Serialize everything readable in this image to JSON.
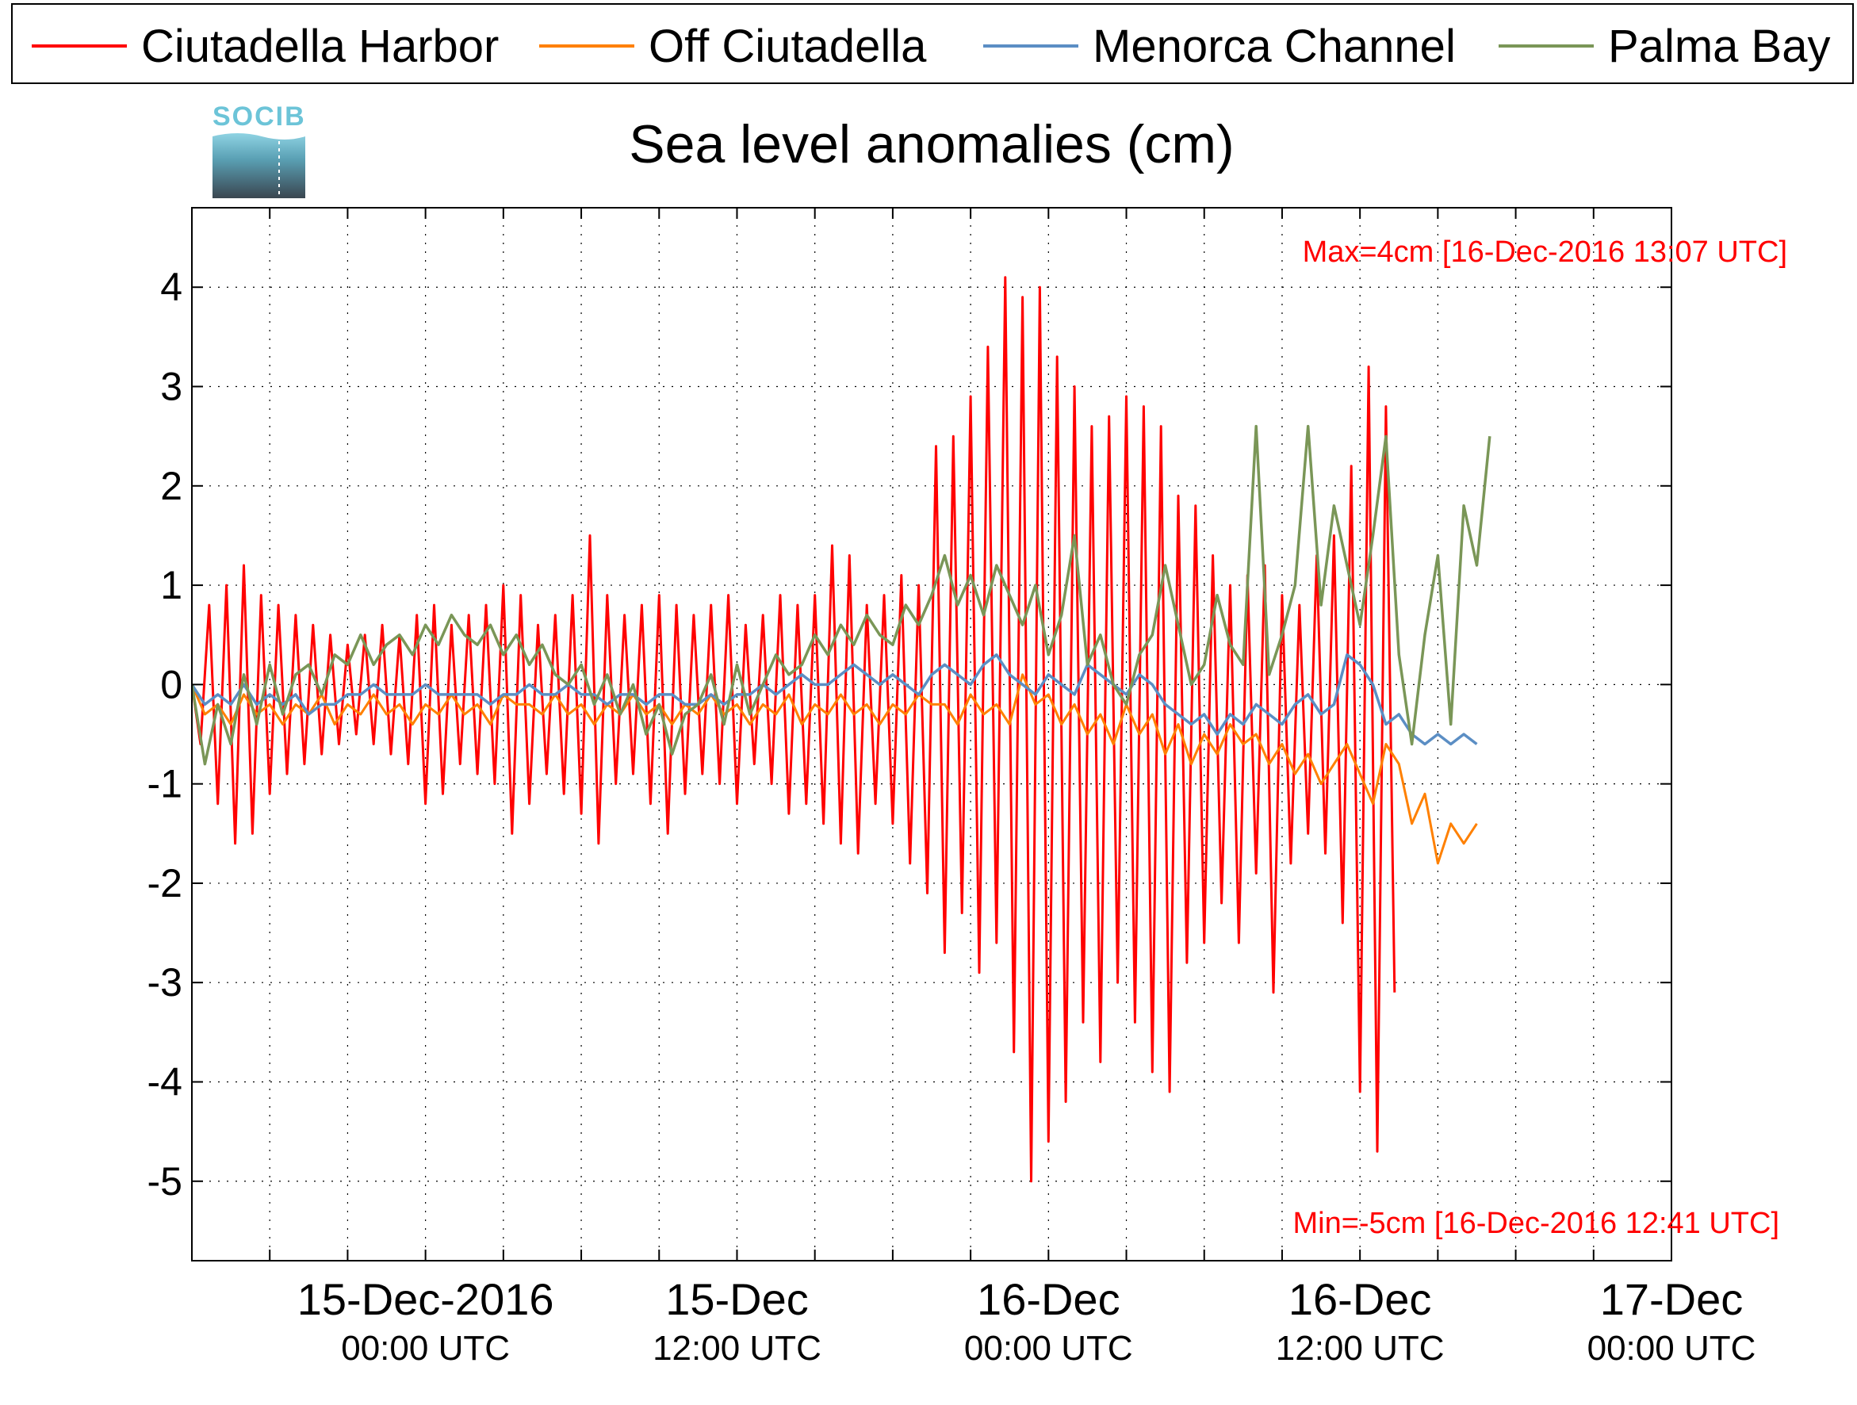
{
  "chart_data": {
    "type": "line",
    "title": "Sea level anomalies (cm)",
    "xlabel": "",
    "ylabel": "",
    "ylim": [
      -5.8,
      4.8
    ],
    "xlim": [
      "2016-12-14T15:00:00Z",
      "2016-12-17T00:00:00Z"
    ],
    "grid": true,
    "legend_position": "top",
    "yticks": [
      4,
      3,
      2,
      1,
      0,
      -1,
      -2,
      -3,
      -4,
      -5
    ],
    "ytick_labels": [
      "4",
      "3",
      "2",
      "1",
      "0",
      "-1",
      "-2",
      "-3",
      "-4",
      "-5"
    ],
    "xticks_major": [
      {
        "x": "2016-12-15T00:00:00Z",
        "line1": "15-Dec-2016",
        "line2": "00:00 UTC"
      },
      {
        "x": "2016-12-15T12:00:00Z",
        "line1": "15-Dec",
        "line2": "12:00 UTC"
      },
      {
        "x": "2016-12-16T00:00:00Z",
        "line1": "16-Dec",
        "line2": "00:00 UTC"
      },
      {
        "x": "2016-12-16T12:00:00Z",
        "line1": "16-Dec",
        "line2": "12:00 UTC"
      },
      {
        "x": "2016-12-17T00:00:00Z",
        "line1": "17-Dec",
        "line2": "00:00 UTC"
      }
    ],
    "annotations": {
      "max": "Max=4cm [16-Dec-2016 13:07 UTC]",
      "min": "Min=-5cm [16-Dec-2016 12:41 UTC]"
    },
    "series": [
      {
        "name": "Ciutadella Harbor",
        "color": "#ff0000",
        "x_start": "2016-12-14T15:00:00Z",
        "step_minutes": 20,
        "values": [
          0.0,
          -0.6,
          0.8,
          -1.2,
          1.0,
          -1.6,
          1.2,
          -1.5,
          0.9,
          -1.1,
          0.8,
          -0.9,
          0.7,
          -0.8,
          0.6,
          -0.7,
          0.5,
          -0.6,
          0.4,
          -0.5,
          0.5,
          -0.6,
          0.6,
          -0.7,
          0.5,
          -0.8,
          0.7,
          -1.2,
          0.8,
          -1.1,
          0.6,
          -0.8,
          0.7,
          -0.9,
          0.8,
          -1.0,
          1.0,
          -1.5,
          0.9,
          -1.2,
          0.6,
          -0.9,
          0.7,
          -1.1,
          0.9,
          -1.3,
          1.5,
          -1.6,
          0.9,
          -1.0,
          0.7,
          -0.9,
          0.8,
          -1.2,
          0.9,
          -1.5,
          0.8,
          -1.1,
          0.7,
          -0.9,
          0.8,
          -1.0,
          0.9,
          -1.2,
          0.6,
          -0.8,
          0.7,
          -1.0,
          0.9,
          -1.3,
          0.8,
          -1.2,
          0.9,
          -1.4,
          1.4,
          -1.6,
          1.3,
          -1.7,
          0.8,
          -1.2,
          0.9,
          -1.4,
          1.1,
          -1.8,
          1.0,
          -2.1,
          2.4,
          -2.7,
          2.5,
          -2.3,
          2.9,
          -2.9,
          3.4,
          -2.6,
          4.1,
          -3.7,
          3.9,
          -5.0,
          4.0,
          -4.6,
          3.3,
          -4.2,
          3.0,
          -3.4,
          2.6,
          -3.8,
          2.7,
          -3.0,
          2.9,
          -3.4,
          2.8,
          -3.9,
          2.6,
          -4.1,
          1.9,
          -2.8,
          1.8,
          -2.6,
          1.3,
          -2.2,
          1.0,
          -2.6,
          1.1,
          -1.9,
          1.2,
          -3.1,
          0.9,
          -1.8,
          0.8,
          -1.5,
          1.3,
          -1.7,
          1.5,
          -2.4,
          2.2,
          -4.1,
          3.2,
          -4.7,
          2.8,
          -3.1
        ]
      },
      {
        "name": "Off Ciutadella",
        "color": "#ff8000",
        "x_start": "2016-12-14T15:00:00Z",
        "step_minutes": 30,
        "values": [
          0.0,
          -0.3,
          -0.2,
          -0.4,
          -0.1,
          -0.3,
          -0.2,
          -0.4,
          -0.2,
          -0.3,
          -0.1,
          -0.4,
          -0.2,
          -0.3,
          -0.1,
          -0.3,
          -0.2,
          -0.4,
          -0.2,
          -0.3,
          -0.1,
          -0.3,
          -0.2,
          -0.4,
          -0.1,
          -0.2,
          -0.2,
          -0.3,
          -0.1,
          -0.3,
          -0.2,
          -0.4,
          -0.2,
          -0.3,
          -0.1,
          -0.3,
          -0.2,
          -0.4,
          -0.2,
          -0.3,
          -0.1,
          -0.3,
          -0.2,
          -0.4,
          -0.2,
          -0.3,
          -0.1,
          -0.4,
          -0.2,
          -0.3,
          -0.1,
          -0.3,
          -0.2,
          -0.4,
          -0.2,
          -0.3,
          -0.1,
          -0.2,
          -0.2,
          -0.4,
          -0.1,
          -0.3,
          -0.2,
          -0.4,
          0.1,
          -0.2,
          -0.1,
          -0.4,
          -0.2,
          -0.5,
          -0.3,
          -0.6,
          -0.2,
          -0.5,
          -0.3,
          -0.7,
          -0.4,
          -0.8,
          -0.5,
          -0.7,
          -0.4,
          -0.6,
          -0.5,
          -0.8,
          -0.6,
          -0.9,
          -0.7,
          -1.0,
          -0.8,
          -0.6,
          -0.9,
          -1.2,
          -0.6,
          -0.8,
          -1.4,
          -1.1,
          -1.8,
          -1.4,
          -1.6,
          -1.4
        ]
      },
      {
        "name": "Menorca Channel",
        "color": "#5b8ec4",
        "x_start": "2016-12-14T15:00:00Z",
        "step_minutes": 30,
        "values": [
          0.0,
          -0.2,
          -0.1,
          -0.2,
          0.0,
          -0.2,
          -0.1,
          -0.2,
          -0.1,
          -0.3,
          -0.2,
          -0.2,
          -0.1,
          -0.1,
          0.0,
          -0.1,
          -0.1,
          -0.1,
          0.0,
          -0.1,
          -0.1,
          -0.1,
          -0.1,
          -0.2,
          -0.1,
          -0.1,
          0.0,
          -0.1,
          -0.1,
          0.0,
          -0.1,
          -0.1,
          -0.2,
          -0.1,
          -0.1,
          -0.2,
          -0.1,
          -0.1,
          -0.2,
          -0.2,
          -0.1,
          -0.2,
          -0.1,
          -0.1,
          0.0,
          -0.1,
          0.0,
          0.1,
          0.0,
          0.0,
          0.1,
          0.2,
          0.1,
          0.0,
          0.1,
          0.0,
          -0.1,
          0.1,
          0.2,
          0.1,
          0.0,
          0.2,
          0.3,
          0.1,
          0.0,
          -0.1,
          0.1,
          0.0,
          -0.1,
          0.2,
          0.1,
          0.0,
          -0.1,
          0.1,
          0.0,
          -0.2,
          -0.3,
          -0.4,
          -0.3,
          -0.5,
          -0.3,
          -0.4,
          -0.2,
          -0.3,
          -0.4,
          -0.2,
          -0.1,
          -0.3,
          -0.2,
          0.3,
          0.2,
          0.0,
          -0.4,
          -0.3,
          -0.5,
          -0.6,
          -0.5,
          -0.6,
          -0.5,
          -0.6
        ]
      },
      {
        "name": "Palma Bay",
        "color": "#7a9657",
        "x_start": "2016-12-14T15:00:00Z",
        "step_minutes": 30,
        "values": [
          0.0,
          -0.8,
          -0.2,
          -0.6,
          0.1,
          -0.4,
          0.2,
          -0.3,
          0.1,
          0.2,
          -0.1,
          0.3,
          0.2,
          0.5,
          0.2,
          0.4,
          0.5,
          0.3,
          0.6,
          0.4,
          0.7,
          0.5,
          0.4,
          0.6,
          0.3,
          0.5,
          0.2,
          0.4,
          0.1,
          0.0,
          0.2,
          -0.2,
          0.1,
          -0.3,
          0.0,
          -0.5,
          -0.2,
          -0.7,
          -0.3,
          -0.2,
          0.1,
          -0.4,
          0.2,
          -0.3,
          0.0,
          0.3,
          0.1,
          0.2,
          0.5,
          0.3,
          0.6,
          0.4,
          0.7,
          0.5,
          0.4,
          0.8,
          0.6,
          0.9,
          1.3,
          0.8,
          1.1,
          0.7,
          1.2,
          0.9,
          0.6,
          1.0,
          0.3,
          0.7,
          1.5,
          0.2,
          0.5,
          0.0,
          -0.2,
          0.3,
          0.5,
          1.2,
          0.6,
          0.0,
          0.2,
          0.9,
          0.4,
          0.2,
          2.6,
          0.1,
          0.5,
          1.0,
          2.6,
          0.8,
          1.8,
          1.2,
          0.6,
          1.5,
          2.5,
          0.3,
          -0.6,
          0.5,
          1.3,
          -0.4,
          1.8,
          1.2,
          2.5
        ]
      }
    ]
  }
}
